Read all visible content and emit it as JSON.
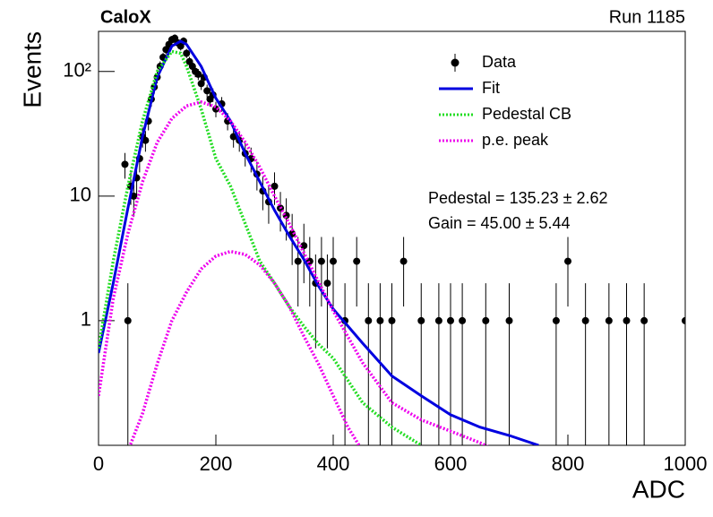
{
  "chart_data": {
    "type": "histogram-fit",
    "title": "CaloX",
    "subtitle": "Run 1185",
    "x_label": "ADC",
    "y_label": "Events",
    "xlim": [
      0,
      1000
    ],
    "xticks": [
      0,
      200,
      400,
      600,
      800,
      1000
    ],
    "ylim": [
      0.1,
      210
    ],
    "yticks": [
      1,
      10,
      {
        "value": 100,
        "label": "10²"
      }
    ],
    "log_y": true,
    "legend": "upper right",
    "annotations": [
      "Pedestal = 135.23 ± 2.62",
      "Gain = 45.00 ± 5.44"
    ],
    "points": {
      "name": "Data",
      "color": "#000000",
      "x": [
        45,
        50,
        55,
        60,
        65,
        70,
        75,
        80,
        85,
        90,
        95,
        100,
        105,
        110,
        115,
        120,
        125,
        130,
        135,
        140,
        145,
        150,
        155,
        160,
        165,
        170,
        175,
        180,
        185,
        190,
        195,
        200,
        210,
        220,
        230,
        240,
        250,
        260,
        270,
        280,
        290,
        300,
        310,
        320,
        330,
        340,
        350,
        360,
        370,
        380,
        390,
        400,
        420,
        440,
        460,
        480,
        500,
        520,
        550,
        580,
        600,
        620,
        660,
        700,
        780,
        800,
        830,
        870,
        900,
        930,
        1000
      ],
      "values": [
        18,
        1,
        12,
        10,
        14,
        20,
        30,
        28,
        40,
        60,
        75,
        90,
        110,
        130,
        150,
        165,
        180,
        185,
        170,
        160,
        175,
        140,
        120,
        110,
        100,
        95,
        80,
        90,
        70,
        60,
        65,
        50,
        55,
        40,
        30,
        28,
        22,
        20,
        15,
        11,
        9,
        12,
        8,
        7,
        5,
        3,
        4,
        3,
        2,
        3,
        2,
        3,
        1,
        3,
        1,
        1,
        1,
        3,
        1,
        1,
        1,
        1,
        1,
        1,
        1,
        3,
        1,
        1,
        1,
        1,
        1
      ],
      "errors": [
        4.2,
        1,
        3.5,
        3.2,
        3.7,
        4.5,
        5.5,
        5.3,
        6.3,
        7.7,
        8.7,
        9.5,
        10.5,
        11.4,
        12.2,
        12.8,
        13.4,
        13.6,
        13,
        12.6,
        13.2,
        11.8,
        11,
        10.5,
        10,
        9.7,
        8.9,
        9.5,
        8.4,
        7.7,
        8.1,
        7.1,
        7.4,
        6.3,
        5.5,
        5.3,
        4.7,
        4.5,
        3.9,
        3.3,
        3,
        3.5,
        2.8,
        2.6,
        2.2,
        1.7,
        2,
        1.7,
        1.4,
        1.7,
        1.4,
        1.7,
        1,
        1.7,
        1,
        1,
        1,
        1.7,
        1,
        1,
        1,
        1,
        1,
        1,
        1,
        1.7,
        1,
        1,
        1,
        1,
        1
      ]
    },
    "series": [
      {
        "name": "Fit",
        "color": "#0000e0",
        "style": "solid",
        "x": [
          0,
          25,
          50,
          75,
          100,
          125,
          140,
          150,
          175,
          200,
          225,
          250,
          275,
          300,
          325,
          350,
          375,
          400,
          450,
          500,
          550,
          600,
          650,
          700,
          750
        ],
        "values": [
          0.55,
          2,
          8,
          30,
          90,
          160,
          175,
          165,
          110,
          61,
          40,
          22,
          13,
          7.7,
          4.8,
          3.1,
          1.9,
          1.24,
          0.66,
          0.36,
          0.25,
          0.176,
          0.14,
          0.12,
          0.1
        ]
      },
      {
        "name": "Pedestal CB",
        "color": "#22dd22",
        "style": "dotted",
        "x": [
          0,
          25,
          50,
          75,
          100,
          125,
          140,
          150,
          175,
          200,
          225,
          250,
          275,
          300,
          325,
          350,
          375,
          400,
          450,
          500,
          550
        ],
        "values": [
          0.6,
          3,
          12,
          40,
          100,
          145,
          140,
          110,
          50,
          20,
          12,
          6,
          3,
          2,
          1.3,
          0.9,
          0.65,
          0.5,
          0.22,
          0.14,
          0.1
        ]
      },
      {
        "name": "p.e. peak",
        "color": "#ee00ee",
        "style": "dotted",
        "x": [
          0,
          25,
          50,
          75,
          100,
          125,
          150,
          175,
          200,
          225,
          250,
          275,
          300,
          325,
          350,
          400,
          450,
          500,
          550,
          600,
          650,
          700
        ],
        "values": [
          0.25,
          1.5,
          5,
          13,
          27,
          42,
          53,
          57,
          52,
          40,
          27,
          17,
          10,
          6,
          3.5,
          1.2,
          0.46,
          0.22,
          0.16,
          0.13,
          0.105,
          0.08
        ]
      },
      {
        "color": "#ee00ee",
        "style": "dotted",
        "x": [
          50,
          75,
          100,
          125,
          150,
          175,
          200,
          225,
          250,
          275,
          300,
          325,
          350,
          375,
          400,
          425,
          450
        ],
        "values": [
          0.09,
          0.18,
          0.45,
          1,
          1.7,
          2.6,
          3.3,
          3.6,
          3.4,
          2.8,
          2,
          1.3,
          0.75,
          0.45,
          0.25,
          0.14,
          0.09
        ]
      }
    ]
  }
}
